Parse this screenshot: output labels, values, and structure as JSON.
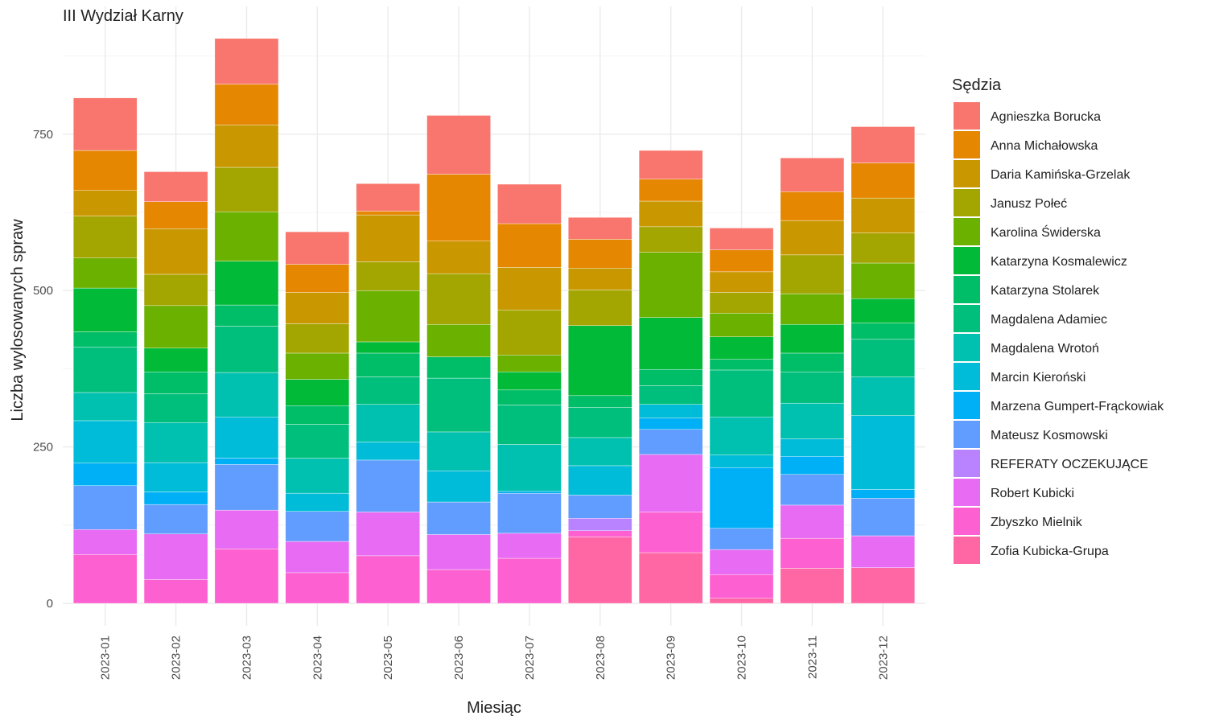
{
  "chart_data": {
    "type": "bar",
    "stacked": true,
    "title": "III Wydział Karny",
    "xlabel": "Miesiąc",
    "ylabel": "Liczba wylosowanych spraw",
    "legend_title": "Sędzia",
    "legend_position": "right",
    "grid": true,
    "ylim": [
      0,
      905
    ],
    "y_ticks": [
      0,
      250,
      500,
      750
    ],
    "categories": [
      "2023-01",
      "2023-02",
      "2023-03",
      "2023-04",
      "2023-05",
      "2023-06",
      "2023-07",
      "2023-08",
      "2023-09",
      "2023-10",
      "2023-11",
      "2023-12"
    ],
    "series": [
      {
        "name": "Agnieszka Borucka",
        "color": "#F8766D",
        "values": [
          84,
          48,
          73,
          52,
          44,
          94,
          63,
          35,
          46,
          35,
          54,
          58
        ]
      },
      {
        "name": "Anna Michałowska",
        "color": "#E58700",
        "values": [
          64,
          43,
          65,
          45,
          6,
          107,
          70,
          46,
          35,
          35,
          46,
          56
        ]
      },
      {
        "name": "Daria Kamińska-Grzelak",
        "color": "#C99800",
        "values": [
          41,
          73,
          68,
          50,
          75,
          52,
          68,
          35,
          41,
          33,
          55,
          56
        ]
      },
      {
        "name": "Janusz Połeć",
        "color": "#A3A500",
        "values": [
          67,
          50,
          71,
          47,
          46,
          81,
          72,
          57,
          41,
          33,
          62,
          48
        ]
      },
      {
        "name": "Karolina Świderska",
        "color": "#6BB100",
        "values": [
          48,
          68,
          79,
          42,
          82,
          52,
          27,
          0,
          104,
          38,
          49,
          57
        ]
      },
      {
        "name": "Katarzyna Kosmalewicz",
        "color": "#00BA38",
        "values": [
          70,
          38,
          70,
          42,
          18,
          0,
          29,
          112,
          83,
          36,
          46,
          39
        ]
      },
      {
        "name": "Katarzyna Stolarek",
        "color": "#00BE67",
        "values": [
          24,
          35,
          34,
          30,
          38,
          34,
          24,
          19,
          26,
          17,
          30,
          26
        ]
      },
      {
        "name": "Magdalena Adamiec",
        "color": "#00BF7D",
        "values": [
          73,
          46,
          74,
          54,
          44,
          86,
          63,
          48,
          30,
          75,
          50,
          60
        ]
      },
      {
        "name": "Magdalena Wrotoń",
        "color": "#00C0AF",
        "values": [
          45,
          64,
          71,
          56,
          60,
          62,
          75,
          45,
          0,
          61,
          57,
          62
        ]
      },
      {
        "name": "Marcin Kieroński",
        "color": "#00BCD8",
        "values": [
          68,
          47,
          66,
          29,
          29,
          50,
          0,
          47,
          22,
          20,
          28,
          118
        ]
      },
      {
        "name": "Marzena Gumpert-Frąckowiak",
        "color": "#00B0F6",
        "values": [
          36,
          20,
          10,
          0,
          0,
          0,
          3,
          0,
          18,
          97,
          29,
          14
        ]
      },
      {
        "name": "Mateusz Kosmowski",
        "color": "#619CFF",
        "values": [
          70,
          47,
          73,
          48,
          83,
          52,
          64,
          37,
          40,
          34,
          49,
          60
        ]
      },
      {
        "name": "REFERATY OCZEKUJĄCE",
        "color": "#B983FF",
        "values": [
          0,
          0,
          0,
          0,
          0,
          0,
          0,
          20,
          0,
          0,
          0,
          0
        ]
      },
      {
        "name": "Robert Kubicki",
        "color": "#E76BF3",
        "values": [
          40,
          73,
          62,
          50,
          70,
          56,
          40,
          0,
          92,
          40,
          53,
          51
        ]
      },
      {
        "name": "Zbyszko Mielnik",
        "color": "#FD61D1",
        "values": [
          78,
          38,
          87,
          49,
          76,
          54,
          72,
          10,
          65,
          38,
          48,
          0
        ]
      },
      {
        "name": "Zofia Kubicka-Grupa",
        "color": "#FF67A4",
        "values": [
          0,
          0,
          0,
          0,
          0,
          0,
          0,
          106,
          81,
          8,
          56,
          57
        ]
      }
    ]
  }
}
